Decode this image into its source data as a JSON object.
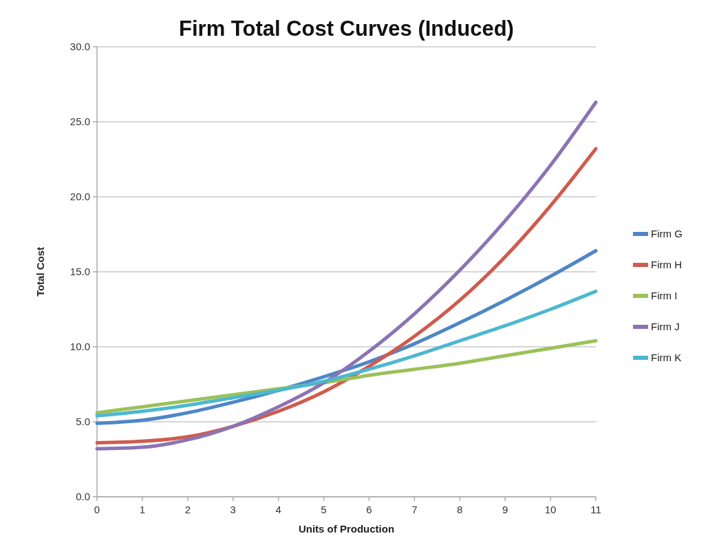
{
  "chart_data": {
    "type": "line",
    "title": "Firm Total Cost Curves (Induced)",
    "xlabel": "Units of Production",
    "ylabel": "Total Cost",
    "x": [
      0,
      1,
      2,
      3,
      4,
      5,
      6,
      7,
      8,
      9,
      10,
      11
    ],
    "xlim": [
      0,
      11
    ],
    "xticks": [
      0,
      1,
      2,
      3,
      4,
      5,
      6,
      7,
      8,
      9,
      10,
      11
    ],
    "ylim": [
      0,
      30
    ],
    "yticks": [
      {
        "value": 0,
        "label": "0.0"
      },
      {
        "value": 5,
        "label": "5.0"
      },
      {
        "value": 10,
        "label": "10.0"
      },
      {
        "value": 15,
        "label": "15.0"
      },
      {
        "value": 20,
        "label": "20.0"
      },
      {
        "value": 25,
        "label": "25.0"
      },
      {
        "value": 30,
        "label": "30.0"
      }
    ],
    "grid": "y",
    "legend": "right",
    "marker": "none",
    "line_style": "solid",
    "series": [
      {
        "name": "Firm G",
        "color": "#4f86c6",
        "values": [
          4.9,
          5.1,
          5.6,
          6.3,
          7.1,
          8.0,
          9.0,
          10.2,
          11.6,
          13.1,
          14.7,
          16.4
        ]
      },
      {
        "name": "Firm H",
        "color": "#cf5b4e",
        "values": [
          3.6,
          3.7,
          4.0,
          4.7,
          5.7,
          7.0,
          8.7,
          10.7,
          13.1,
          16.0,
          19.4,
          23.2
        ]
      },
      {
        "name": "Firm I",
        "color": "#9bc15a",
        "values": [
          5.6,
          6.0,
          6.4,
          6.8,
          7.2,
          7.6,
          8.1,
          8.5,
          8.9,
          9.4,
          9.9,
          10.4
        ]
      },
      {
        "name": "Firm J",
        "color": "#8c73b4",
        "values": [
          3.2,
          3.3,
          3.8,
          4.7,
          6.0,
          7.6,
          9.7,
          12.2,
          15.1,
          18.4,
          22.1,
          26.3
        ]
      },
      {
        "name": "Firm K",
        "color": "#4cb8d0",
        "values": [
          5.4,
          5.7,
          6.1,
          6.6,
          7.1,
          7.7,
          8.5,
          9.4,
          10.4,
          11.4,
          12.5,
          13.7
        ]
      }
    ]
  }
}
